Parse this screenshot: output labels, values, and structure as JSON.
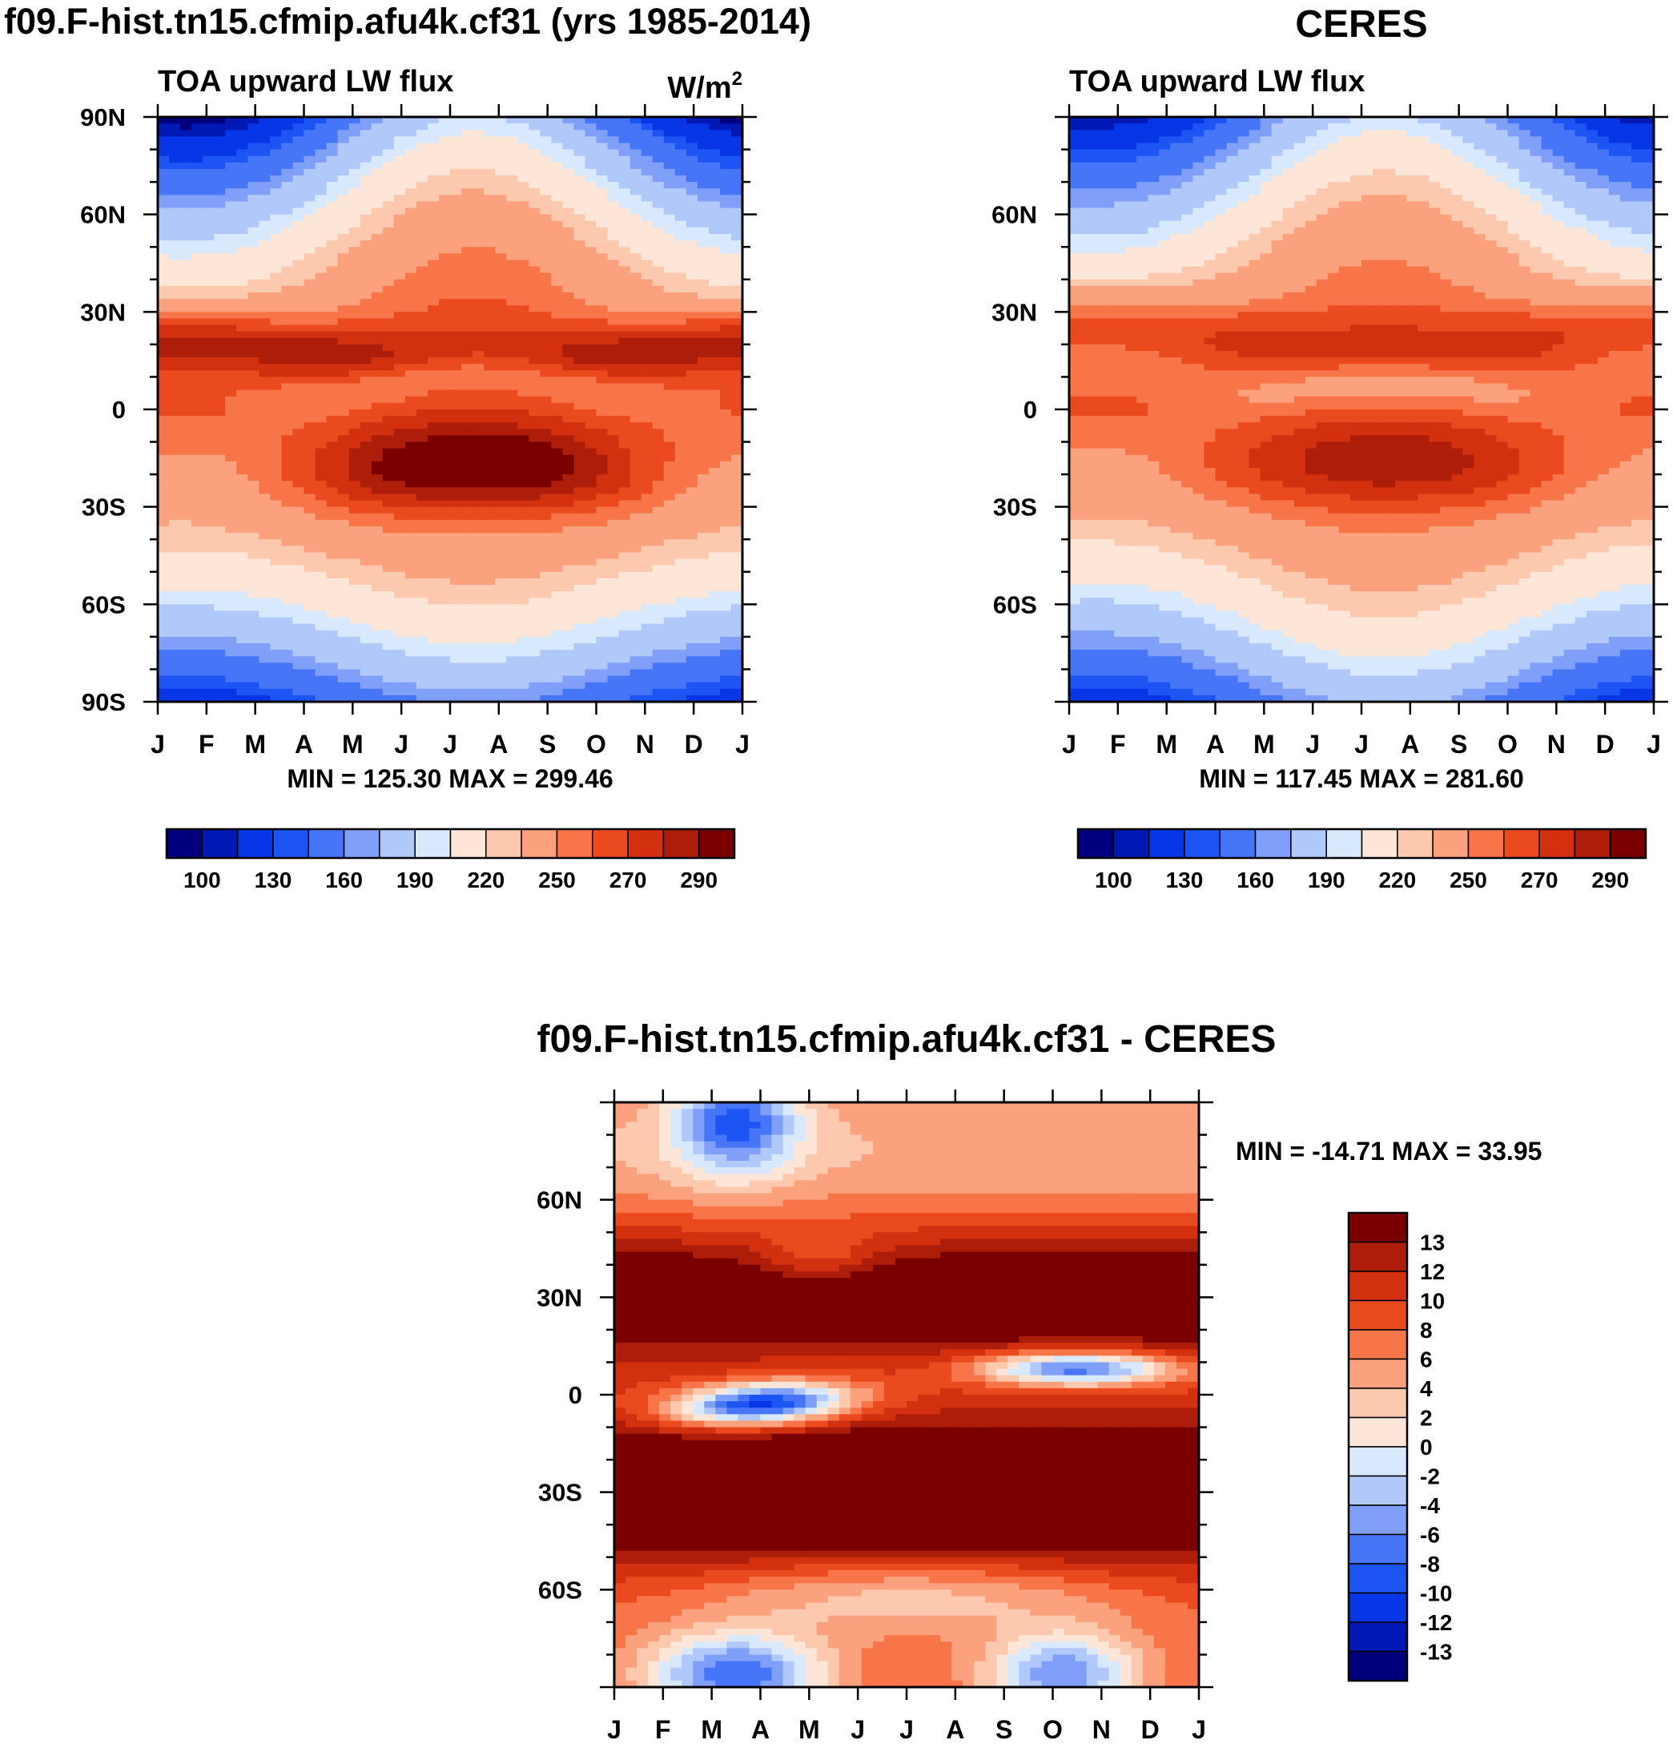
{
  "chart_data": [
    {
      "id": "model",
      "type": "heatmap",
      "title": "f09.F-hist.tn15.cfmip.afu4k.cf31 (yrs 1985-2014)",
      "subtitle": "TOA upward LW flux",
      "units": "W/m",
      "units_sup": "2",
      "months": [
        "J",
        "F",
        "M",
        "A",
        "M",
        "J",
        "J",
        "A",
        "S",
        "O",
        "N",
        "D",
        "J"
      ],
      "lat_ticks": [
        "90N",
        "60N",
        "30N",
        "0",
        "30S",
        "60S",
        "90S"
      ],
      "lat_values": [
        90,
        60,
        30,
        0,
        -30,
        -60,
        -90
      ],
      "ylim": [
        -90,
        90
      ],
      "stats": "MIN = 125.30 MAX = 299.46",
      "min": 125.3,
      "max": 299.46,
      "field": "model"
    },
    {
      "id": "ceres",
      "type": "heatmap",
      "title": "CERES",
      "subtitle": "TOA upward LW flux",
      "months": [
        "J",
        "F",
        "M",
        "A",
        "M",
        "J",
        "J",
        "A",
        "S",
        "O",
        "N",
        "D",
        "J"
      ],
      "lat_ticks": [
        "60N",
        "30N",
        "0",
        "30S",
        "60S"
      ],
      "lat_values": [
        60,
        30,
        0,
        -30,
        -60
      ],
      "ylim": [
        -90,
        90
      ],
      "stats": "MIN = 117.45 MAX = 281.60",
      "min": 117.45,
      "max": 281.6,
      "field": "ceres"
    },
    {
      "id": "diff",
      "type": "heatmap",
      "title": "f09.F-hist.tn15.cfmip.afu4k.cf31 - CERES",
      "months": [
        "J",
        "F",
        "M",
        "A",
        "M",
        "J",
        "J",
        "A",
        "S",
        "O",
        "N",
        "D",
        "J"
      ],
      "lat_ticks": [
        "60N",
        "30N",
        "0",
        "30S",
        "60S"
      ],
      "lat_values": [
        60,
        30,
        0,
        -30,
        -60
      ],
      "ylim": [
        -90,
        90
      ],
      "stats": "MIN = -14.71 MAX =  33.95",
      "min": -14.71,
      "max": 33.95,
      "field": "diff"
    }
  ],
  "colors": [
    "#00007f",
    "#0018b4",
    "#0636e6",
    "#1d55f5",
    "#4775f7",
    "#7f9ff9",
    "#b1c8fa",
    "#d8e9fd",
    "#fde6d7",
    "#fcc8ae",
    "#fba17d",
    "#f77549",
    "#ea4a1e",
    "#d33010",
    "#ae1d09",
    "#7a0000"
  ],
  "abs_colorbar": {
    "levels": [
      90,
      100,
      120,
      130,
      150,
      160,
      180,
      190,
      210,
      220,
      240,
      250,
      260,
      270,
      280,
      290
    ],
    "labels": [
      "100",
      "130",
      "160",
      "190",
      "220",
      "250",
      "270",
      "290"
    ]
  },
  "diff_colorbar": {
    "levels": [
      -14,
      -13,
      -12,
      -10,
      -8,
      -6,
      -4,
      -2,
      0,
      2,
      4,
      6,
      8,
      10,
      12,
      13
    ],
    "labels": [
      "13",
      "12",
      "10",
      "8",
      "6",
      "4",
      "2",
      "0",
      "-2",
      "-4",
      "-6",
      "-8",
      "-10",
      "-12",
      "-13"
    ]
  }
}
